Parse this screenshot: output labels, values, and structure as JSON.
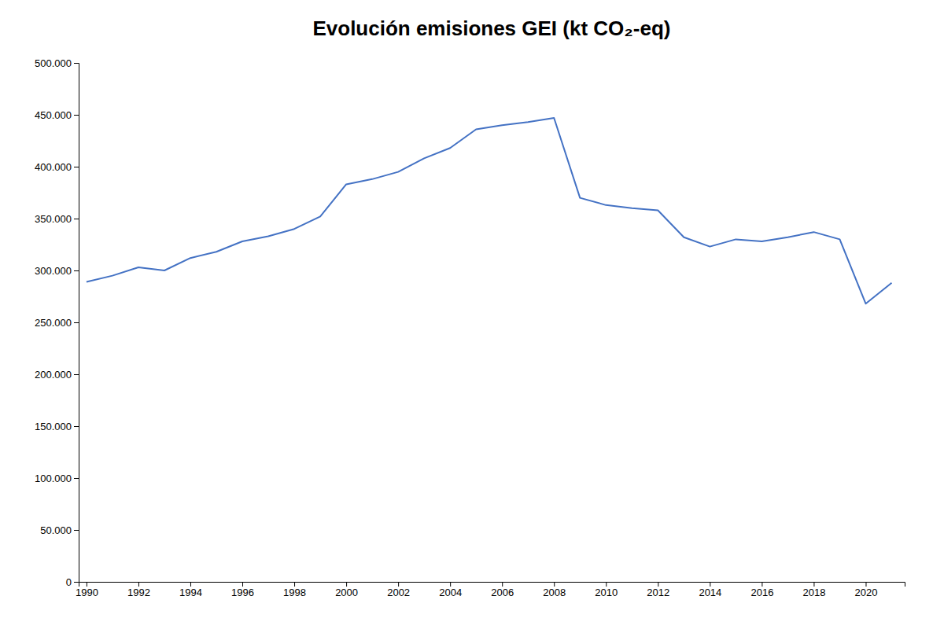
{
  "chart_data": {
    "type": "line",
    "title": "Evolución emisiones GEI (kt CO₂-eq)",
    "x": [
      1990,
      1991,
      1992,
      1993,
      1994,
      1995,
      1996,
      1997,
      1998,
      1999,
      2000,
      2001,
      2002,
      2003,
      2004,
      2005,
      2006,
      2007,
      2008,
      2009,
      2010,
      2011,
      2012,
      2013,
      2014,
      2015,
      2016,
      2017,
      2018,
      2019,
      2020,
      2021
    ],
    "values": [
      289000,
      295000,
      303000,
      300000,
      312000,
      318000,
      328000,
      333000,
      340000,
      352000,
      383000,
      388000,
      395000,
      408000,
      418000,
      436000,
      440000,
      443000,
      447000,
      370000,
      363000,
      360000,
      358000,
      332000,
      323000,
      330000,
      328000,
      332000,
      337000,
      330000,
      268000,
      288000
    ],
    "color": "#4472C4",
    "xlim": [
      1989.7,
      2021.5
    ],
    "xticks": [
      1990,
      1992,
      1994,
      1996,
      1998,
      2000,
      2002,
      2004,
      2006,
      2008,
      2010,
      2012,
      2014,
      2016,
      2018,
      2020
    ],
    "ylim": [
      0,
      500000
    ],
    "yticks": [
      0,
      {
        "value": 50000,
        "label": "50.000"
      },
      {
        "value": 100000,
        "label": "100.000"
      },
      {
        "value": 150000,
        "label": "150.000"
      },
      {
        "value": 200000,
        "label": "200.000"
      },
      {
        "value": 250000,
        "label": "250.000"
      },
      {
        "value": 300000,
        "label": "300.000"
      },
      {
        "value": 350000,
        "label": "350.000"
      },
      {
        "value": 400000,
        "label": "400.000"
      },
      {
        "value": 450000,
        "label": "450.000"
      },
      {
        "value": 500000,
        "label": "500.000"
      }
    ],
    "grid": false
  }
}
